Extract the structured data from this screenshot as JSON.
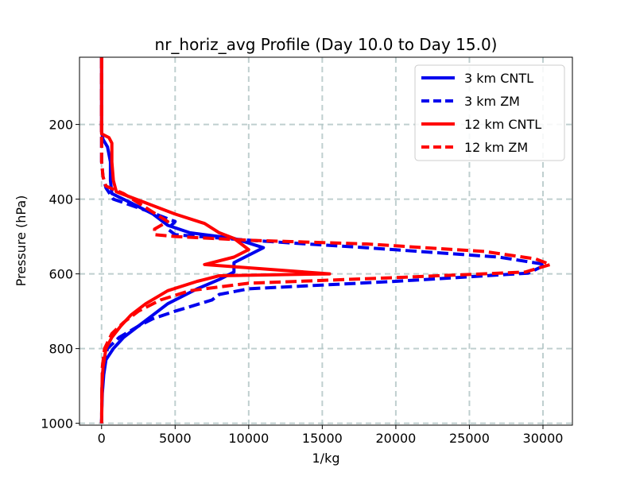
{
  "chart_data": {
    "type": "line",
    "title": "nr_horiz_avg Profile (Day 10.0 to Day 15.0)",
    "xlabel": "1/kg",
    "ylabel": "Pressure (hPa)",
    "xlim": [
      -1500,
      32000
    ],
    "ylim": [
      1005,
      20
    ],
    "y_inverted": true,
    "grid": true,
    "legend_position": "top-right",
    "xticks": [
      0,
      5000,
      10000,
      15000,
      20000,
      25000,
      30000
    ],
    "yticks": [
      200,
      400,
      600,
      800,
      1000
    ],
    "series": [
      {
        "name": "3 km CNTL",
        "color": "#0000ee",
        "style": "solid",
        "points": [
          [
            0,
            20
          ],
          [
            0,
            150
          ],
          [
            0,
            220
          ],
          [
            100,
            240
          ],
          [
            400,
            260
          ],
          [
            600,
            300
          ],
          [
            600,
            350
          ],
          [
            700,
            385
          ],
          [
            2000,
            410
          ],
          [
            3500,
            440
          ],
          [
            4500,
            470
          ],
          [
            6000,
            490
          ],
          [
            9000,
            505
          ],
          [
            11000,
            530
          ],
          [
            10000,
            550
          ],
          [
            9000,
            570
          ],
          [
            9000,
            595
          ],
          [
            8000,
            615
          ],
          [
            6500,
            640
          ],
          [
            4500,
            680
          ],
          [
            3500,
            710
          ],
          [
            2500,
            740
          ],
          [
            1500,
            770
          ],
          [
            800,
            800
          ],
          [
            300,
            830
          ],
          [
            150,
            870
          ],
          [
            50,
            920
          ],
          [
            20,
            960
          ],
          [
            0,
            1000
          ]
        ]
      },
      {
        "name": "3 km ZM",
        "color": "#0000ee",
        "style": "dashed",
        "points": [
          [
            0,
            20
          ],
          [
            0,
            150
          ],
          [
            0,
            220
          ],
          [
            0,
            250
          ],
          [
            0,
            300
          ],
          [
            100,
            340
          ],
          [
            300,
            370
          ],
          [
            800,
            400
          ],
          [
            3000,
            430
          ],
          [
            5000,
            460
          ],
          [
            4500,
            480
          ],
          [
            5000,
            495
          ],
          [
            10000,
            510
          ],
          [
            18000,
            530
          ],
          [
            27000,
            555
          ],
          [
            30200,
            575
          ],
          [
            29000,
            598
          ],
          [
            20000,
            620
          ],
          [
            10000,
            640
          ],
          [
            8000,
            655
          ],
          [
            7500,
            670
          ],
          [
            5000,
            700
          ],
          [
            3500,
            720
          ],
          [
            2500,
            740
          ],
          [
            1200,
            770
          ],
          [
            400,
            800
          ],
          [
            100,
            850
          ],
          [
            30,
            900
          ],
          [
            0,
            1000
          ]
        ]
      },
      {
        "name": "12 km CNTL",
        "color": "#ff0000",
        "style": "solid",
        "points": [
          [
            0,
            20
          ],
          [
            0,
            150
          ],
          [
            0,
            225
          ],
          [
            500,
            235
          ],
          [
            700,
            250
          ],
          [
            700,
            300
          ],
          [
            800,
            350
          ],
          [
            1000,
            380
          ],
          [
            3000,
            410
          ],
          [
            5000,
            440
          ],
          [
            7000,
            465
          ],
          [
            8000,
            490
          ],
          [
            9000,
            505
          ],
          [
            10000,
            535
          ],
          [
            9000,
            555
          ],
          [
            7000,
            575
          ],
          [
            15500,
            600
          ],
          [
            8000,
            605
          ],
          [
            6500,
            620
          ],
          [
            4500,
            645
          ],
          [
            3000,
            680
          ],
          [
            2000,
            710
          ],
          [
            1300,
            740
          ],
          [
            700,
            770
          ],
          [
            300,
            800
          ],
          [
            100,
            850
          ],
          [
            30,
            900
          ],
          [
            0,
            1000
          ]
        ]
      },
      {
        "name": "12 km ZM",
        "color": "#ff0000",
        "style": "dashed",
        "points": [
          [
            0,
            20
          ],
          [
            0,
            150
          ],
          [
            0,
            220
          ],
          [
            0,
            260
          ],
          [
            0,
            300
          ],
          [
            100,
            340
          ],
          [
            300,
            365
          ],
          [
            1500,
            385
          ],
          [
            4500,
            460
          ],
          [
            3600,
            480
          ],
          [
            3600,
            495
          ],
          [
            5000,
            500
          ],
          [
            10000,
            510
          ],
          [
            18000,
            520
          ],
          [
            26000,
            540
          ],
          [
            29500,
            560
          ],
          [
            30500,
            575
          ],
          [
            28800,
            595
          ],
          [
            20000,
            610
          ],
          [
            10000,
            625
          ],
          [
            6000,
            645
          ],
          [
            4000,
            670
          ],
          [
            2500,
            700
          ],
          [
            1500,
            730
          ],
          [
            700,
            760
          ],
          [
            200,
            800
          ],
          [
            50,
            850
          ],
          [
            0,
            1000
          ]
        ]
      }
    ]
  }
}
